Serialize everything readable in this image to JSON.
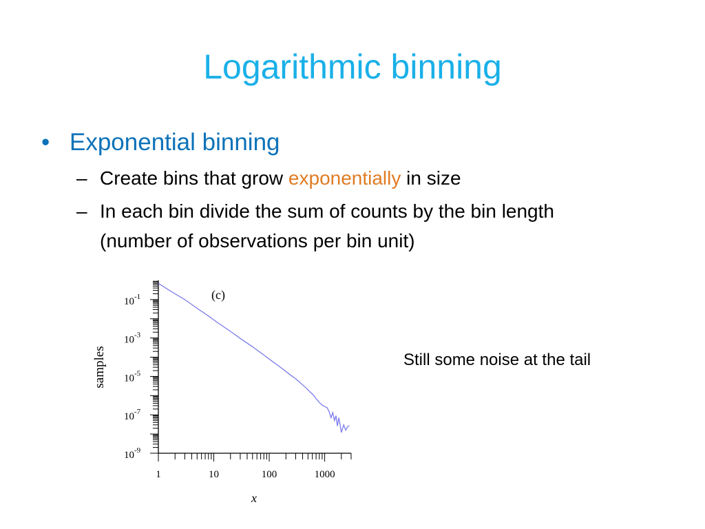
{
  "slide": {
    "title": "Logarithmic binning",
    "bullet": "Exponential binning",
    "sub1_before": "Create bins that grow ",
    "sub1_highlight": "exponentially",
    "sub1_after": " in size",
    "sub2_line1": "In each bin divide the sum of counts by the bin length",
    "sub2_line2": "(number of observations per bin unit)",
    "note": "Still some noise at the tail",
    "title_color": "#1ab0e8",
    "bullet_color": "#0c72b8",
    "highlight_color": "#e07c24",
    "bullet_glyph": "•",
    "dash_glyph": "–"
  },
  "chart_data": {
    "type": "line",
    "panel_label": "(c)",
    "xlabel": "x",
    "ylabel": "samples",
    "xscale": "log",
    "yscale": "log",
    "xlim": [
      1,
      3000
    ],
    "ylim": [
      1e-09,
      1
    ],
    "x_ticks": [
      {
        "value": 1,
        "label": "1"
      },
      {
        "value": 10,
        "label": "10"
      },
      {
        "value": 100,
        "label": "100"
      },
      {
        "value": 1000,
        "label": "1000"
      }
    ],
    "y_ticks": [
      {
        "value": 0.1,
        "base": "10",
        "exp": "-1"
      },
      {
        "value": 0.001,
        "base": "10",
        "exp": "-3"
      },
      {
        "value": 1e-05,
        "base": "10",
        "exp": "-5"
      },
      {
        "value": 1e-07,
        "base": "10",
        "exp": "-7"
      },
      {
        "value": 1e-09,
        "base": "10",
        "exp": "-9"
      }
    ],
    "line_color": "#7b7bea",
    "grid": false,
    "series": [
      {
        "x": [
          1,
          1.5,
          2,
          3,
          5,
          8,
          12,
          20,
          30,
          50,
          80,
          110,
          150,
          200,
          250,
          300,
          350,
          400,
          450,
          500,
          550,
          600,
          650,
          700,
          800,
          900,
          1000,
          1100,
          1200,
          1300,
          1400,
          1500,
          1600,
          1700,
          1800,
          1900,
          2000,
          2200,
          2400,
          2600,
          2800
        ],
        "y": [
          0.7,
          0.33,
          0.2,
          0.1,
          0.035,
          0.014,
          0.006,
          0.0022,
          0.00095,
          0.00035,
          0.00013,
          6.5e-05,
          3.4e-05,
          1.8e-05,
          1.1e-05,
          7.5e-06,
          5.1e-06,
          3.6e-06,
          2.7e-06,
          2e-06,
          1.5e-06,
          1.2e-06,
          9.5e-07,
          7e-07,
          4.4e-07,
          3.2e-07,
          2.7e-07,
          2.4e-07,
          1.5e-07,
          7e-08,
          1.3e-07,
          5e-08,
          9e-08,
          2.6e-08,
          7e-08,
          3e-08,
          1.2e-08,
          3e-08,
          1.6e-08,
          2.5e-08,
          2.7e-08
        ]
      }
    ]
  }
}
